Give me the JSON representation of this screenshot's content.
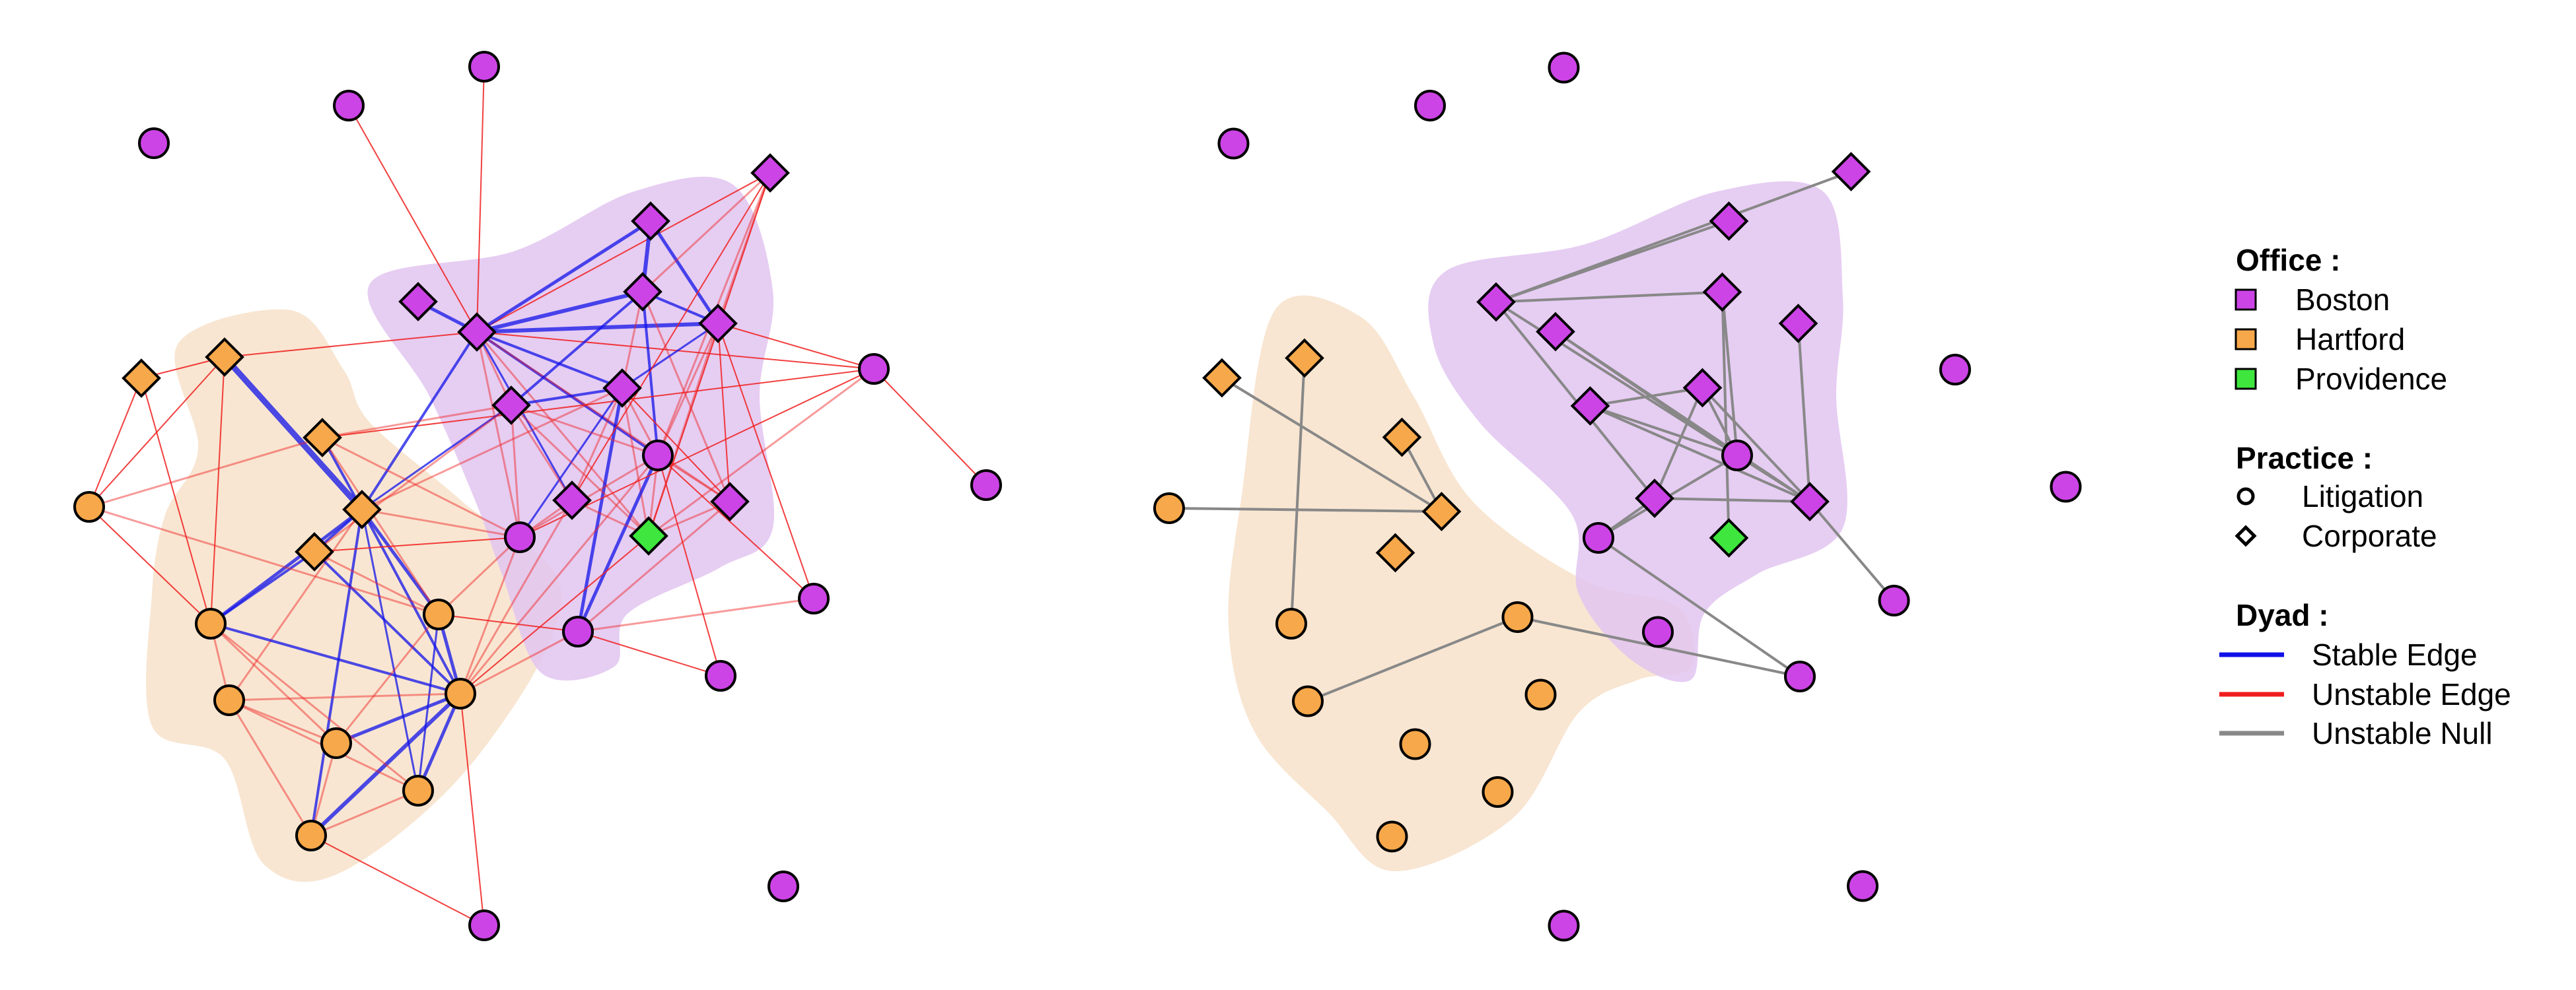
{
  "colors": {
    "boston": "#CC44E6",
    "hartford": "#F7A84A",
    "providence": "#3EE63E",
    "stable_edge": "#1111E8",
    "unstable_edge": "#F01E1E",
    "unstable_null": "#888888",
    "hull_boston": "#E2C4F0",
    "hull_hartford": "#F7E2CA"
  },
  "icons": {
    "litigation": "circle-shape",
    "corporate": "diamond-shape"
  },
  "legend": {
    "office_title": "Office :",
    "offices": [
      {
        "label": "Boston",
        "key": "boston"
      },
      {
        "label": "Hartford",
        "key": "hartford"
      },
      {
        "label": "Providence",
        "key": "providence"
      }
    ],
    "practice_title": "Practice :",
    "practices": [
      {
        "label": "Litigation",
        "shape": "circle"
      },
      {
        "label": "Corporate",
        "shape": "diamond"
      }
    ],
    "dyad_title": "Dyad :",
    "dyads": [
      {
        "label": "Stable Edge",
        "key": "stable_edge"
      },
      {
        "label": "Unstable Edge",
        "key": "unstable_edge"
      },
      {
        "label": "Unstable Null",
        "key": "unstable_null"
      }
    ]
  }
}
